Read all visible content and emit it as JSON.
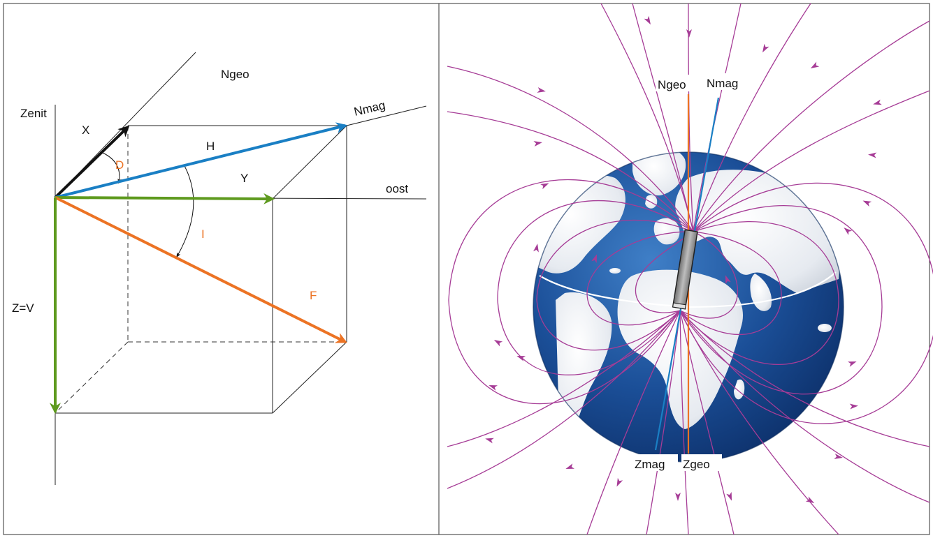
{
  "left_diagram": {
    "labels": {
      "zenit": "Zenit",
      "x": "X",
      "ngeo": "Ngeo",
      "nmag": "Nmag",
      "h": "H",
      "d": "D",
      "y": "Y",
      "oost": "oost",
      "i": "I",
      "f": "F",
      "zv": "Z=V"
    },
    "colors": {
      "x_vector": "#111111",
      "h_vector": "#1a7fc4",
      "yz_vector": "#5e9a1e",
      "f_vector": "#ec7324",
      "orange_label": "#ec7324"
    }
  },
  "right_diagram": {
    "labels": {
      "ngeo": "Ngeo",
      "nmag": "Nmag",
      "zmag": "Zmag",
      "zgeo": "Zgeo"
    },
    "colors": {
      "field_lines": "#a63c96",
      "geo_axis": "#ec7324",
      "mag_axis": "#1a7fc4",
      "ocean": "#15498f",
      "land": "#e8ecf1",
      "magnet": "#9a9a9a"
    }
  }
}
